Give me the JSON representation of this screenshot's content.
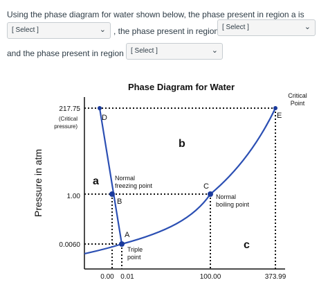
{
  "question": {
    "part1": "Using the phase diagram for water shown below, the phase present in region a is",
    "part2": ", the phase present in region b is",
    "part3": "and the phase present in region c is",
    "select_a": "[ Select ]",
    "select_b": "[ Select ]",
    "select_c": "[ Select ]"
  },
  "diagram": {
    "title": "Phase Diagram for Water",
    "y_axis_label": "Pressure in atm",
    "y_ticks": [
      "217.75",
      "1.00",
      "0.0060"
    ],
    "critical_pressure_label": [
      "(Critical",
      "pressure)"
    ],
    "x_ticks": [
      "0.00",
      "0.01",
      "100.00",
      "373.99"
    ],
    "point_labels": {
      "A": "A",
      "B": "B",
      "C": "C",
      "D": "D",
      "E": "E"
    },
    "region_labels": {
      "a": "a",
      "b": "b",
      "c": "c"
    },
    "critical_point_label": [
      "Critical",
      "Point"
    ],
    "normal_freezing_label": [
      "Normal",
      "freezing point"
    ],
    "normal_boiling_label": [
      "Normal",
      "boiling point"
    ],
    "triple_point_label": [
      "Triple",
      "point"
    ],
    "line_color": "#2b4fb3",
    "dot_color": "#1a3a9c"
  }
}
